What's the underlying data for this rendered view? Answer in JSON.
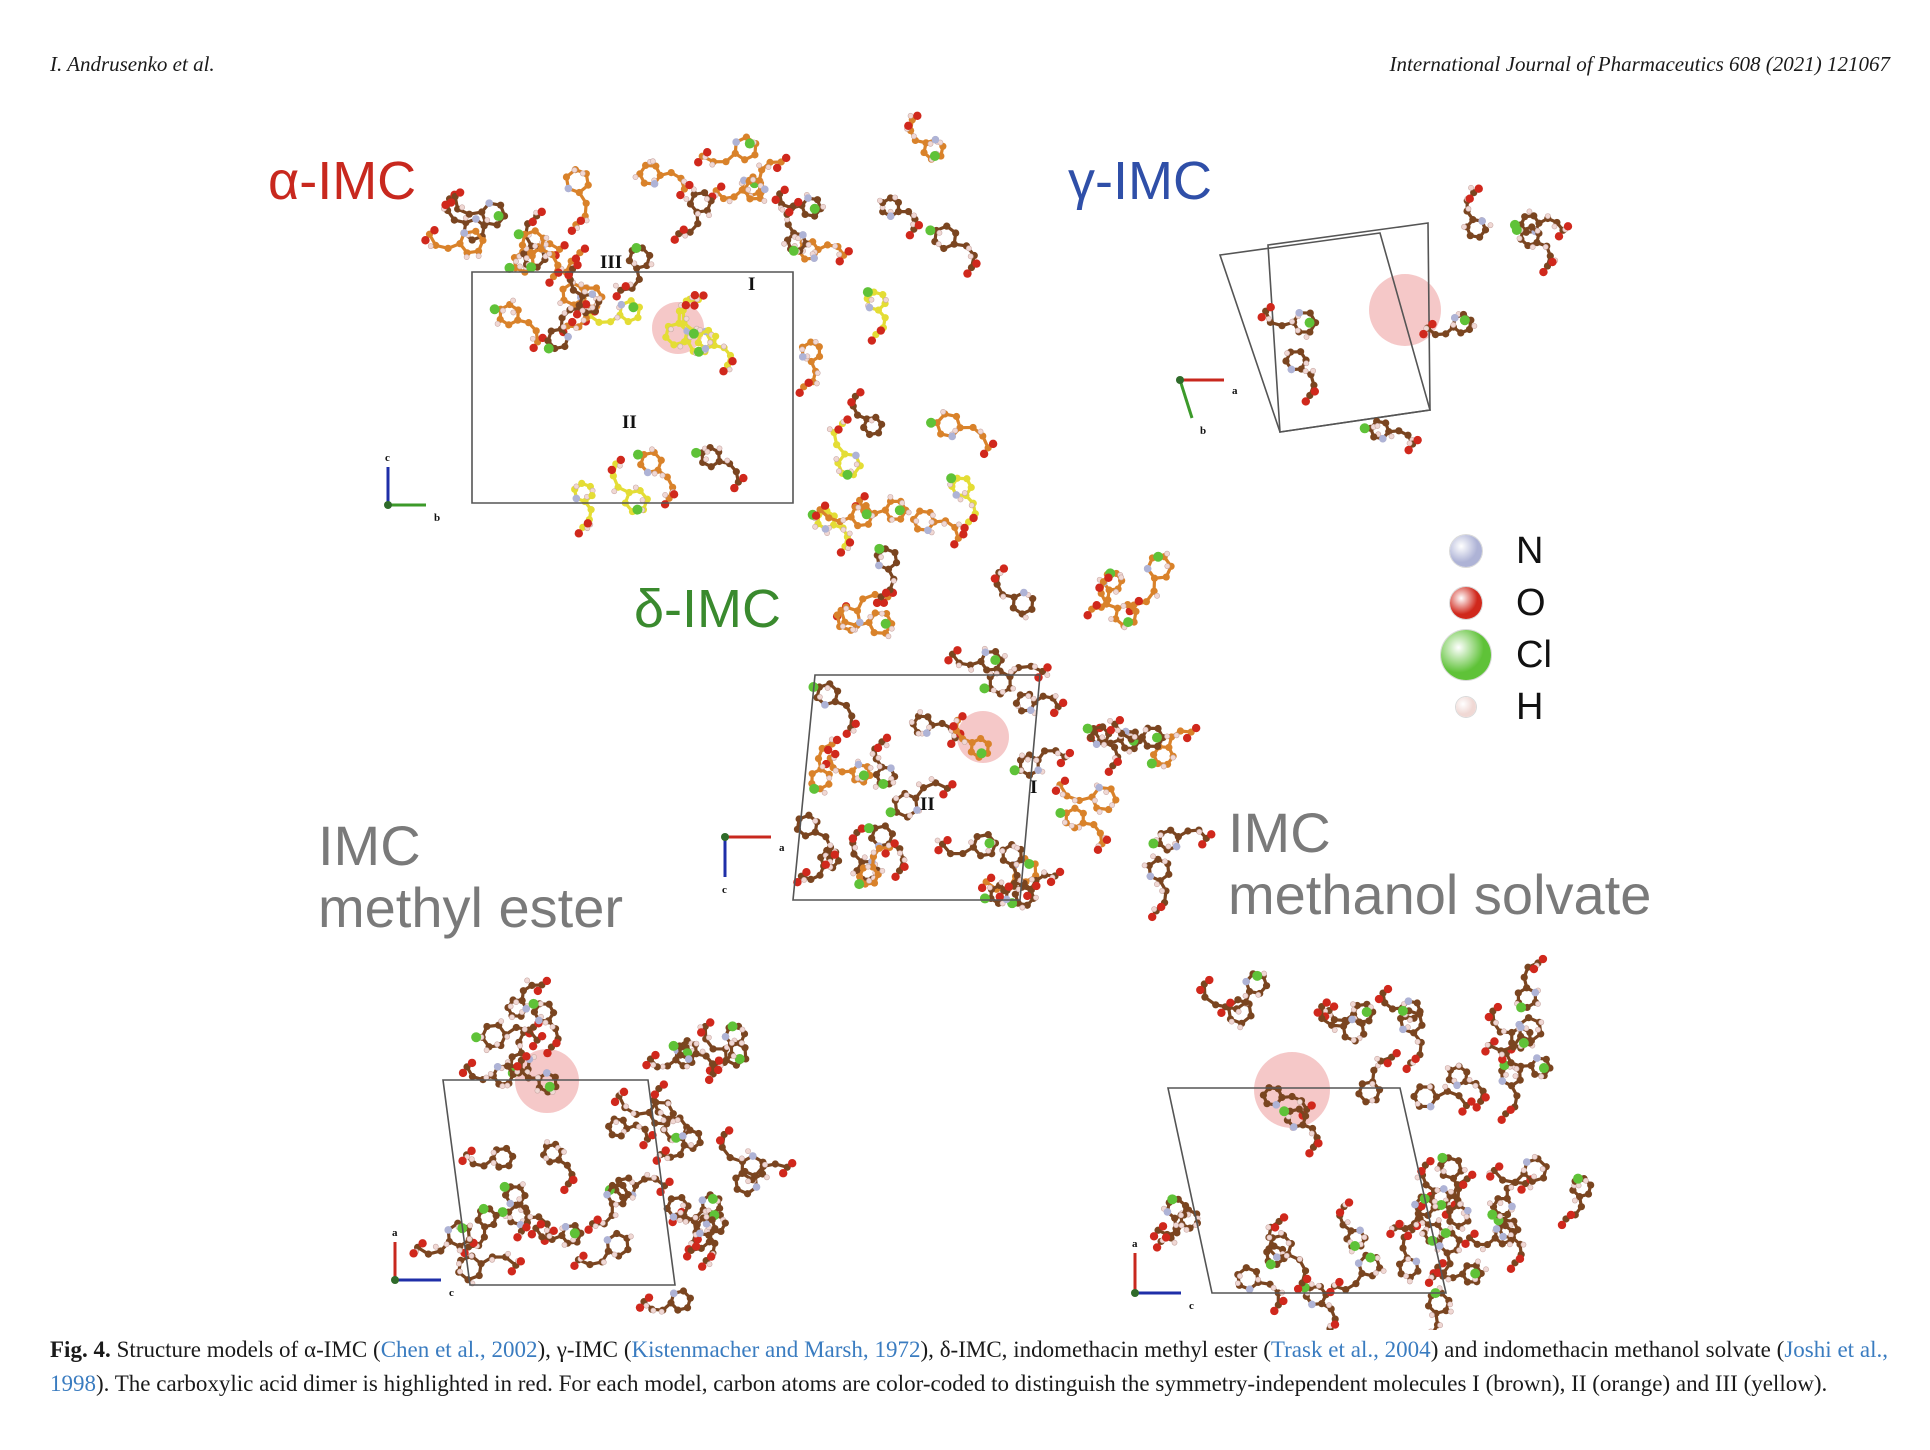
{
  "header": {
    "author": "I. Andrusenko et al.",
    "journal": "International Journal of Pharmaceutics 608 (2021) 121067"
  },
  "figure": {
    "panels": [
      {
        "label": "α-IMC",
        "color": "#c8281e",
        "molecule_labels": [
          "III",
          "I",
          "II"
        ],
        "axes": [
          "c",
          "b"
        ]
      },
      {
        "label": "γ-IMC",
        "color": "#2f4fa8",
        "axes": [
          "a",
          "b"
        ]
      },
      {
        "label": "δ-IMC",
        "color": "#3a8a2e",
        "molecule_labels": [
          "I",
          "II"
        ],
        "axes": [
          "a",
          "c"
        ]
      },
      {
        "label_line1": "IMC",
        "label_line2": "methyl ester",
        "color": "#7a7a7a",
        "axes": [
          "a",
          "c"
        ]
      },
      {
        "label_line1": "IMC",
        "label_line2": "methanol solvate",
        "color": "#7a7a7a",
        "axes": [
          "a",
          "c"
        ]
      }
    ],
    "legend": [
      {
        "symbol": "N",
        "color": "#aeb3d6"
      },
      {
        "symbol": "O",
        "color": "#d0281c"
      },
      {
        "symbol": "Cl",
        "color": "#5fc238"
      },
      {
        "symbol": "H",
        "color": "#f0d8d4"
      }
    ],
    "atom_colors": {
      "carbon_I": "#7a4520",
      "carbon_II": "#d9822a",
      "carbon_III": "#e4dd35",
      "highlight": "#f2b6b6"
    }
  },
  "caption": {
    "fig_label": "Fig. 4.",
    "t1": " Structure models of α-IMC (",
    "r1": "Chen et al., 2002",
    "t2": "), γ-IMC (",
    "r2": "Kistenmacher and Marsh, 1972",
    "t3": "), δ-IMC, indomethacin methyl ester (",
    "r3": "Trask et al., 2004",
    "t4": ") and indomethacin methanol solvate (",
    "r4": "Joshi et al., 1998",
    "t5": "). The carboxylic acid dimer is highlighted in red. For each model, carbon atoms are color-coded to distinguish the symmetry-independent molecules I (brown), II (orange) and III (yellow)."
  }
}
